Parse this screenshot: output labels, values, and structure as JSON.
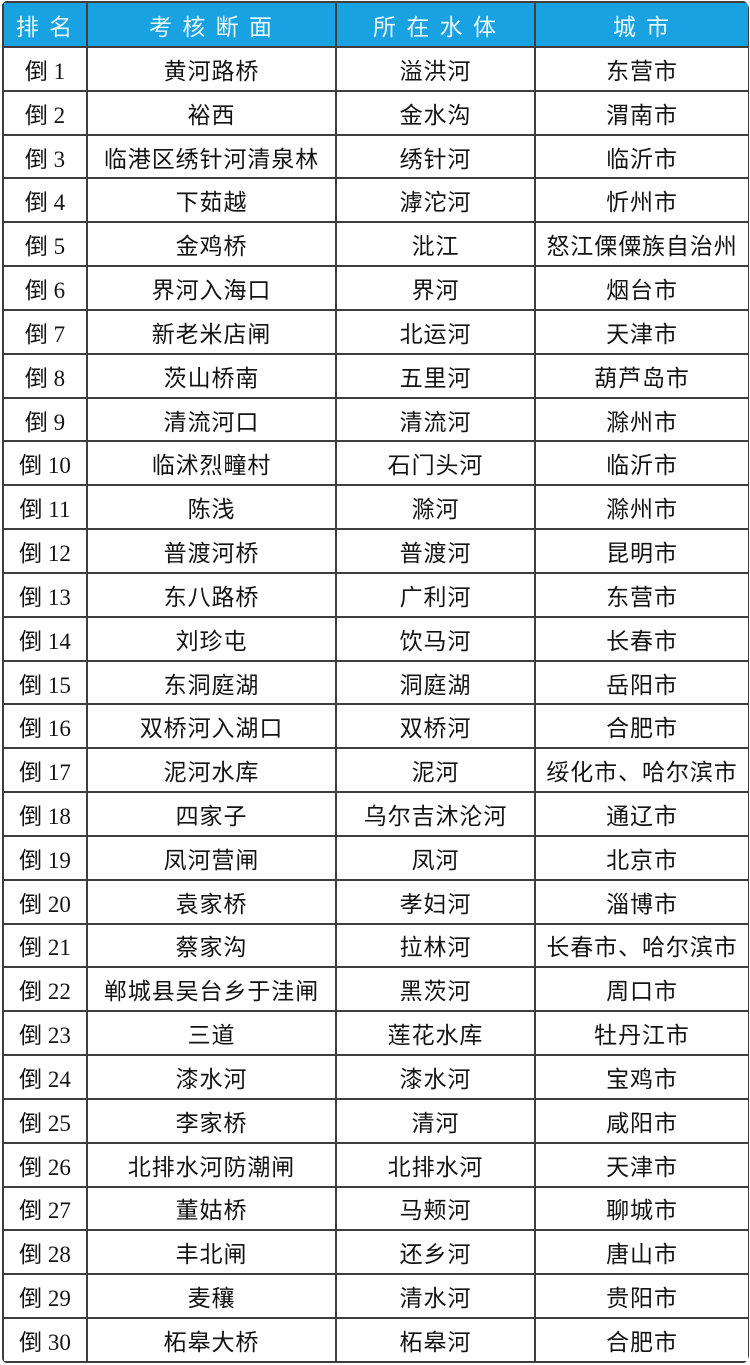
{
  "colors": {
    "header_bg": "#18A2E2",
    "header_text": "#EAF8FF",
    "grid_border": "#3E3E3E",
    "row_bg": "#FFFFFF",
    "body_text": "#131313"
  },
  "table": {
    "columns": [
      "排名",
      "考核断面",
      "所在水体",
      "城市"
    ],
    "rows": [
      {
        "rank": "倒 1",
        "section": "黄河路桥",
        "water_body": "溢洪河",
        "city": "东营市"
      },
      {
        "rank": "倒 2",
        "section": "裕西",
        "water_body": "金水沟",
        "city": "渭南市"
      },
      {
        "rank": "倒 3",
        "section": "临港区绣针河清泉林",
        "water_body": "绣针河",
        "city": "临沂市"
      },
      {
        "rank": "倒 4",
        "section": "下茹越",
        "water_body": "滹沱河",
        "city": "忻州市"
      },
      {
        "rank": "倒 5",
        "section": "金鸡桥",
        "water_body": "沘江",
        "city": "怒江傈僳族自治州"
      },
      {
        "rank": "倒 6",
        "section": "界河入海口",
        "water_body": "界河",
        "city": "烟台市"
      },
      {
        "rank": "倒 7",
        "section": "新老米店闸",
        "water_body": "北运河",
        "city": "天津市"
      },
      {
        "rank": "倒 8",
        "section": "茨山桥南",
        "water_body": "五里河",
        "city": "葫芦岛市"
      },
      {
        "rank": "倒 9",
        "section": "清流河口",
        "water_body": "清流河",
        "city": "滁州市"
      },
      {
        "rank": "倒 10",
        "section": "临沭烈疃村",
        "water_body": "石门头河",
        "city": "临沂市"
      },
      {
        "rank": "倒 11",
        "section": "陈浅",
        "water_body": "滁河",
        "city": "滁州市"
      },
      {
        "rank": "倒 12",
        "section": "普渡河桥",
        "water_body": "普渡河",
        "city": "昆明市"
      },
      {
        "rank": "倒 13",
        "section": "东八路桥",
        "water_body": "广利河",
        "city": "东营市"
      },
      {
        "rank": "倒 14",
        "section": "刘珍屯",
        "water_body": "饮马河",
        "city": "长春市"
      },
      {
        "rank": "倒 15",
        "section": "东洞庭湖",
        "water_body": "洞庭湖",
        "city": "岳阳市"
      },
      {
        "rank": "倒 16",
        "section": "双桥河入湖口",
        "water_body": "双桥河",
        "city": "合肥市"
      },
      {
        "rank": "倒 17",
        "section": "泥河水库",
        "water_body": "泥河",
        "city": "绥化市、哈尔滨市"
      },
      {
        "rank": "倒 18",
        "section": "四家子",
        "water_body": "乌尔吉沐沦河",
        "city": "通辽市"
      },
      {
        "rank": "倒 19",
        "section": "凤河营闸",
        "water_body": "凤河",
        "city": "北京市"
      },
      {
        "rank": "倒 20",
        "section": "袁家桥",
        "water_body": "孝妇河",
        "city": "淄博市"
      },
      {
        "rank": "倒 21",
        "section": "蔡家沟",
        "water_body": "拉林河",
        "city": "长春市、哈尔滨市"
      },
      {
        "rank": "倒 22",
        "section": "郸城县吴台乡于洼闸",
        "water_body": "黑茨河",
        "city": "周口市"
      },
      {
        "rank": "倒 23",
        "section": "三道",
        "water_body": "莲花水库",
        "city": "牡丹江市"
      },
      {
        "rank": "倒 24",
        "section": "漆水河",
        "water_body": "漆水河",
        "city": "宝鸡市"
      },
      {
        "rank": "倒 25",
        "section": "李家桥",
        "water_body": "清河",
        "city": "咸阳市"
      },
      {
        "rank": "倒 26",
        "section": "北排水河防潮闸",
        "water_body": "北排水河",
        "city": "天津市"
      },
      {
        "rank": "倒 27",
        "section": "董姑桥",
        "water_body": "马颊河",
        "city": "聊城市"
      },
      {
        "rank": "倒 28",
        "section": "丰北闸",
        "water_body": "还乡河",
        "city": "唐山市"
      },
      {
        "rank": "倒 29",
        "section": "麦穰",
        "water_body": "清水河",
        "city": "贵阳市"
      },
      {
        "rank": "倒 30",
        "section": "柘皋大桥",
        "water_body": "柘皋河",
        "city": "合肥市"
      }
    ]
  }
}
